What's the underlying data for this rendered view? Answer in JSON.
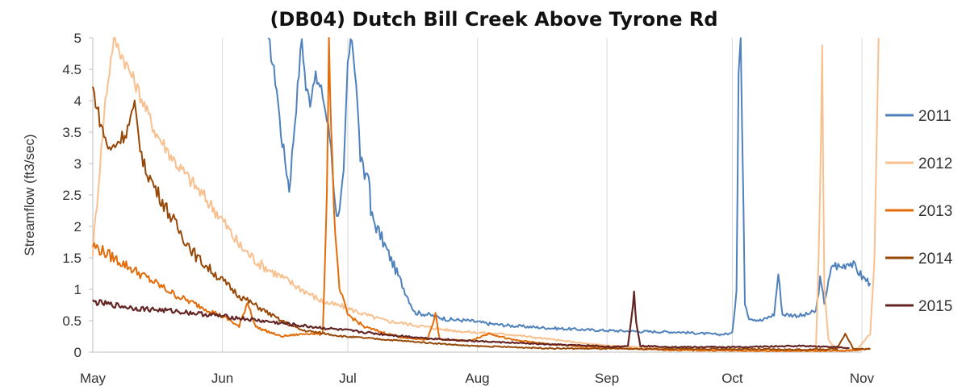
{
  "chart_data": {
    "type": "line",
    "title": "(DB04) Dutch Bill Creek Above Tyrone Rd",
    "xlabel": "",
    "ylabel": "Streamflow (ft3/sec)",
    "x_unit": "day-of-period (May 1 = 0)",
    "xlim": [
      "May",
      "Nov"
    ],
    "ylim": [
      0,
      5
    ],
    "y_ticks": [
      "0",
      "0.5",
      "1",
      "1.5",
      "2",
      "2.5",
      "3",
      "3.5",
      "4",
      "4.5",
      "5"
    ],
    "x_ticks": [
      "May",
      "Jun",
      "Jul",
      "Aug",
      "Sep",
      "Oct",
      "Nov"
    ],
    "grid": "vertical-monthly",
    "legend_position": "right",
    "colors": {
      "2011": "#4f81bd",
      "2012": "#f9c08f",
      "2013": "#e36c09",
      "2014": "#974706",
      "2015": "#632523"
    },
    "series": [
      {
        "name": "2011",
        "points": [
          [
            42,
            5
          ],
          [
            44,
            4.2
          ],
          [
            45,
            3.5
          ],
          [
            47,
            2.6
          ],
          [
            48,
            3.4
          ],
          [
            50,
            5
          ],
          [
            51,
            4.2
          ],
          [
            52,
            4
          ],
          [
            53,
            4.4
          ],
          [
            55,
            4.1
          ],
          [
            57,
            3.3
          ],
          [
            58,
            2.3
          ],
          [
            59,
            2.2
          ],
          [
            60,
            2.8
          ],
          [
            61,
            4.6
          ],
          [
            62,
            5
          ],
          [
            63,
            4.3
          ],
          [
            64,
            3.1
          ],
          [
            65,
            2.8
          ],
          [
            66,
            2.9
          ],
          [
            66.5,
            2.2
          ],
          [
            77,
            0.63
          ],
          [
            80,
            0.6
          ],
          [
            85,
            0.52
          ],
          [
            90,
            0.5
          ],
          [
            95,
            0.45
          ],
          [
            100,
            0.42
          ],
          [
            110,
            0.38
          ],
          [
            120,
            0.35
          ],
          [
            130,
            0.33
          ],
          [
            140,
            0.32
          ],
          [
            145,
            0.3
          ],
          [
            150,
            0.28
          ],
          [
            153,
            0.3
          ],
          [
            154,
            1.0
          ],
          [
            154.5,
            4.5
          ],
          [
            155,
            5
          ],
          [
            156,
            0.8
          ],
          [
            157,
            0.55
          ],
          [
            160,
            0.5
          ],
          [
            163,
            0.6
          ],
          [
            164,
            1.25
          ],
          [
            165,
            0.6
          ],
          [
            170,
            0.58
          ],
          [
            173,
            0.65
          ],
          [
            174,
            1.15
          ],
          [
            175,
            0.8
          ],
          [
            176,
            1.1
          ],
          [
            177,
            1.4
          ],
          [
            179,
            1.35
          ],
          [
            181,
            1.45
          ],
          [
            183,
            1.3
          ],
          [
            184,
            1.2
          ],
          [
            186,
            1.1
          ]
        ]
      },
      {
        "name": "2012",
        "points": [
          [
            0,
            1.6
          ],
          [
            3,
            4.0
          ],
          [
            5,
            5
          ],
          [
            10,
            4.3
          ],
          [
            15,
            3.5
          ],
          [
            20,
            3.0
          ],
          [
            25,
            2.6
          ],
          [
            30,
            2.2
          ],
          [
            35,
            1.7
          ],
          [
            40,
            1.4
          ],
          [
            45,
            1.2
          ],
          [
            50,
            1.0
          ],
          [
            55,
            0.8
          ],
          [
            60,
            0.72
          ],
          [
            65,
            0.6
          ],
          [
            70,
            0.5
          ],
          [
            75,
            0.45
          ],
          [
            80,
            0.4
          ],
          [
            85,
            0.35
          ],
          [
            90,
            0.32
          ],
          [
            100,
            0.28
          ],
          [
            110,
            0.2
          ],
          [
            120,
            0.12
          ],
          [
            130,
            0.08
          ],
          [
            140,
            0.05
          ],
          [
            150,
            0.03
          ],
          [
            160,
            0.02
          ],
          [
            173,
            0.02
          ],
          [
            174,
            2.5
          ],
          [
            174.5,
            4.8
          ],
          [
            175,
            1.0
          ],
          [
            176,
            0.2
          ],
          [
            178,
            0.02
          ],
          [
            183,
            0.05
          ],
          [
            186,
            0.3
          ],
          [
            187,
            1.5
          ],
          [
            188,
            5
          ]
        ]
      },
      {
        "name": "2013",
        "points": [
          [
            0,
            1.7
          ],
          [
            5,
            1.5
          ],
          [
            10,
            1.3
          ],
          [
            15,
            1.1
          ],
          [
            20,
            0.9
          ],
          [
            25,
            0.75
          ],
          [
            30,
            0.6
          ],
          [
            33,
            0.5
          ],
          [
            35,
            0.4
          ],
          [
            37,
            0.8
          ],
          [
            39,
            0.4
          ],
          [
            45,
            0.25
          ],
          [
            52,
            0.3
          ],
          [
            55,
            0.28
          ],
          [
            56,
            2.5
          ],
          [
            56.5,
            5
          ],
          [
            57,
            3.6
          ],
          [
            58,
            1.8
          ],
          [
            59,
            1.0
          ],
          [
            61,
            0.6
          ],
          [
            65,
            0.4
          ],
          [
            70,
            0.3
          ],
          [
            75,
            0.22
          ],
          [
            80,
            0.2
          ],
          [
            82,
            0.6
          ],
          [
            83,
            0.2
          ],
          [
            90,
            0.18
          ],
          [
            95,
            0.3
          ],
          [
            100,
            0.2
          ],
          [
            110,
            0.12
          ],
          [
            120,
            0.08
          ],
          [
            130,
            0.05
          ],
          [
            140,
            0.03
          ],
          [
            160,
            0.02
          ],
          [
            180,
            0.02
          ],
          [
            186,
            0.05
          ]
        ]
      },
      {
        "name": "2014",
        "points": [
          [
            0,
            4.2
          ],
          [
            2,
            3.6
          ],
          [
            4,
            3.2
          ],
          [
            8,
            3.5
          ],
          [
            10,
            3.9
          ],
          [
            12,
            3.0
          ],
          [
            15,
            2.6
          ],
          [
            20,
            2.0
          ],
          [
            25,
            1.5
          ],
          [
            30,
            1.2
          ],
          [
            35,
            0.9
          ],
          [
            40,
            0.7
          ],
          [
            45,
            0.5
          ],
          [
            50,
            0.35
          ],
          [
            60,
            0.25
          ],
          [
            70,
            0.2
          ],
          [
            80,
            0.15
          ],
          [
            90,
            0.1
          ],
          [
            100,
            0.08
          ],
          [
            110,
            0.06
          ],
          [
            130,
            0.05
          ],
          [
            150,
            0.05
          ],
          [
            170,
            0.04
          ],
          [
            178,
            0.05
          ],
          [
            180,
            0.3
          ],
          [
            182,
            0.05
          ],
          [
            186,
            0.05
          ]
        ]
      },
      {
        "name": "2015",
        "points": [
          [
            0,
            0.8
          ],
          [
            5,
            0.75
          ],
          [
            10,
            0.7
          ],
          [
            20,
            0.65
          ],
          [
            30,
            0.58
          ],
          [
            40,
            0.5
          ],
          [
            50,
            0.42
          ],
          [
            60,
            0.35
          ],
          [
            70,
            0.28
          ],
          [
            80,
            0.22
          ],
          [
            90,
            0.18
          ],
          [
            100,
            0.15
          ],
          [
            110,
            0.12
          ],
          [
            120,
            0.1
          ],
          [
            125,
            0.08
          ],
          [
            128,
            0.1
          ],
          [
            129,
            0.6
          ],
          [
            129.5,
            0.95
          ],
          [
            130,
            0.5
          ],
          [
            131,
            0.1
          ],
          [
            140,
            0.08
          ],
          [
            155,
            0.08
          ],
          [
            170,
            0.1
          ],
          [
            178,
            0.08
          ],
          [
            181,
            0.06
          ]
        ]
      }
    ]
  }
}
